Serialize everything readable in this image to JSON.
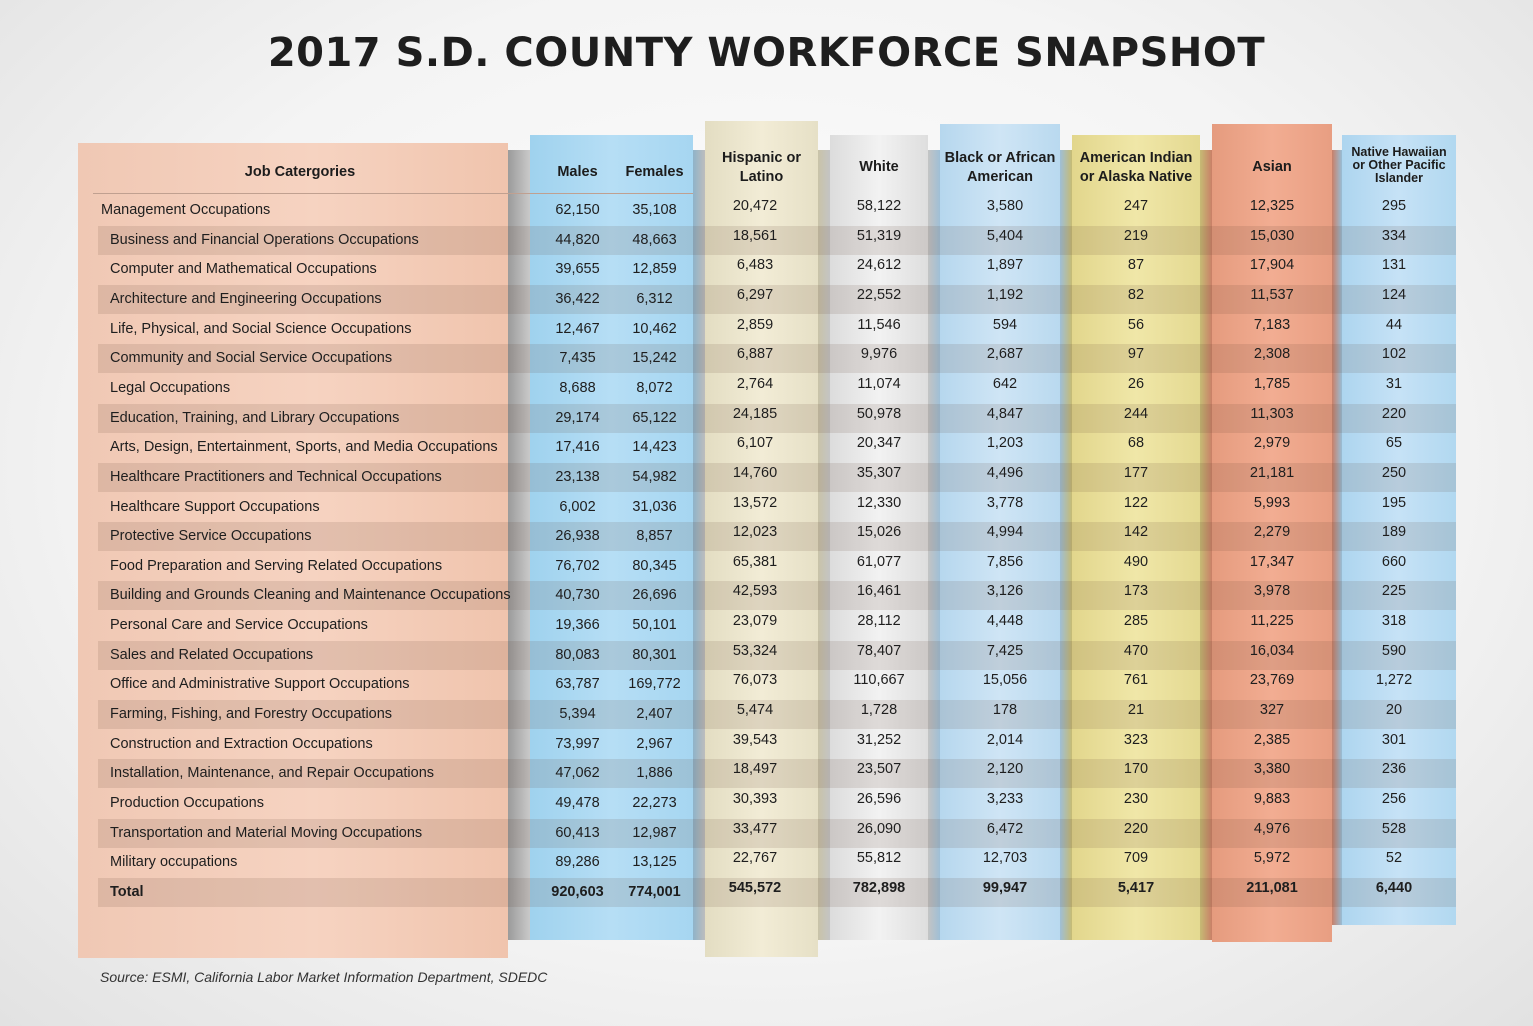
{
  "title": "2017 S.D. COUNTY WORKFORCE SNAPSHOT",
  "source": "Source: ESMI, California Labor Market Information Department, SDEDC",
  "colors": {
    "job_col": "#f4cdb9",
    "males_females_col": "#b0dbf3",
    "hispanic_col": "#efe9d2",
    "white_col": "#ececec",
    "black_col": "#c9e1f3",
    "american_indian_col": "#ece2a0",
    "asian_col": "#ee a88c",
    "native_hawaiian_col": "#c0dff4"
  },
  "chart_data": {
    "type": "table",
    "title": "2017 S.D. COUNTY WORKFORCE SNAPSHOT",
    "headers": {
      "job": "Job Catergories",
      "males": "Males",
      "females": "Females",
      "hispanic_1": "Hispanic or",
      "hispanic_2": "Latino",
      "white": "White",
      "black_1": "Black or African",
      "black_2": "American",
      "amind_1": "American Indian",
      "amind_2": "or Alaska Native",
      "asian": "Asian",
      "nh_1": "Native Hawaiian",
      "nh_2": "or Other Pacific",
      "nh_3": "Islander"
    },
    "rows": [
      {
        "job": "Management Occupations",
        "males": "62,150",
        "females": "35,108",
        "hispanic": "20,472",
        "white": "58,122",
        "black": "3,580",
        "amind": "247",
        "asian": "12,325",
        "nh": "295"
      },
      {
        "job": "Business and Financial Operations Occupations",
        "males": "44,820",
        "females": "48,663",
        "hispanic": "18,561",
        "white": "51,319",
        "black": "5,404",
        "amind": "219",
        "asian": "15,030",
        "nh": "334"
      },
      {
        "job": "Computer and Mathematical Occupations",
        "males": "39,655",
        "females": "12,859",
        "hispanic": "6,483",
        "white": "24,612",
        "black": "1,897",
        "amind": "87",
        "asian": "17,904",
        "nh": "131"
      },
      {
        "job": "Architecture and Engineering Occupations",
        "males": "36,422",
        "females": "6,312",
        "hispanic": "6,297",
        "white": "22,552",
        "black": "1,192",
        "amind": "82",
        "asian": "11,537",
        "nh": "124"
      },
      {
        "job": "Life, Physical, and Social Science Occupations",
        "males": "12,467",
        "females": "10,462",
        "hispanic": "2,859",
        "white": "11,546",
        "black": "594",
        "amind": "56",
        "asian": "7,183",
        "nh": "44"
      },
      {
        "job": "Community and Social Service Occupations",
        "males": "7,435",
        "females": "15,242",
        "hispanic": "6,887",
        "white": "9,976",
        "black": "2,687",
        "amind": "97",
        "asian": "2,308",
        "nh": "102"
      },
      {
        "job": "Legal Occupations",
        "males": "8,688",
        "females": "8,072",
        "hispanic": "2,764",
        "white": "11,074",
        "black": "642",
        "amind": "26",
        "asian": "1,785",
        "nh": "31"
      },
      {
        "job": "Education, Training, and Library Occupations",
        "males": "29,174",
        "females": "65,122",
        "hispanic": "24,185",
        "white": "50,978",
        "black": "4,847",
        "amind": "244",
        "asian": "11,303",
        "nh": "220"
      },
      {
        "job": "Arts, Design, Entertainment, Sports, and Media Occupations",
        "males": "17,416",
        "females": "14,423",
        "hispanic": "6,107",
        "white": "20,347",
        "black": "1,203",
        "amind": "68",
        "asian": "2,979",
        "nh": "65"
      },
      {
        "job": "Healthcare Practitioners and Technical Occupations",
        "males": "23,138",
        "females": "54,982",
        "hispanic": "14,760",
        "white": "35,307",
        "black": "4,496",
        "amind": "177",
        "asian": "21,181",
        "nh": "250"
      },
      {
        "job": "Healthcare Support Occupations",
        "males": "6,002",
        "females": "31,036",
        "hispanic": "13,572",
        "white": "12,330",
        "black": "3,778",
        "amind": "122",
        "asian": "5,993",
        "nh": "195"
      },
      {
        "job": "Protective Service Occupations",
        "males": "26,938",
        "females": "8,857",
        "hispanic": "12,023",
        "white": "15,026",
        "black": "4,994",
        "amind": "142",
        "asian": "2,279",
        "nh": "189"
      },
      {
        "job": "Food Preparation and Serving Related Occupations",
        "males": "76,702",
        "females": "80,345",
        "hispanic": "65,381",
        "white": "61,077",
        "black": "7,856",
        "amind": "490",
        "asian": "17,347",
        "nh": "660"
      },
      {
        "job": "Building and Grounds Cleaning and Maintenance Occupations",
        "males": "40,730",
        "females": "26,696",
        "hispanic": "42,593",
        "white": "16,461",
        "black": "3,126",
        "amind": "173",
        "asian": "3,978",
        "nh": "225"
      },
      {
        "job": "Personal Care and Service Occupations",
        "males": "19,366",
        "females": "50,101",
        "hispanic": "23,079",
        "white": "28,112",
        "black": "4,448",
        "amind": "285",
        "asian": "11,225",
        "nh": "318"
      },
      {
        "job": "Sales and Related Occupations",
        "males": "80,083",
        "females": "80,301",
        "hispanic": "53,324",
        "white": "78,407",
        "black": "7,425",
        "amind": "470",
        "asian": "16,034",
        "nh": "590"
      },
      {
        "job": "Office and Administrative Support Occupations",
        "males": "63,787",
        "females": "169,772",
        "hispanic": "76,073",
        "white": "110,667",
        "black": "15,056",
        "amind": "761",
        "asian": "23,769",
        "nh": "1,272"
      },
      {
        "job": "Farming, Fishing, and Forestry Occupations",
        "males": "5,394",
        "females": "2,407",
        "hispanic": "5,474",
        "white": "1,728",
        "black": "178",
        "amind": "21",
        "asian": "327",
        "nh": "20"
      },
      {
        "job": "Construction and Extraction Occupations",
        "males": "73,997",
        "females": "2,967",
        "hispanic": "39,543",
        "white": "31,252",
        "black": "2,014",
        "amind": "323",
        "asian": "2,385",
        "nh": "301"
      },
      {
        "job": "Installation, Maintenance, and Repair Occupations",
        "males": "47,062",
        "females": "1,886",
        "hispanic": "18,497",
        "white": "23,507",
        "black": "2,120",
        "amind": "170",
        "asian": "3,380",
        "nh": "236"
      },
      {
        "job": "Production Occupations",
        "males": "49,478",
        "females": "22,273",
        "hispanic": "30,393",
        "white": "26,596",
        "black": "3,233",
        "amind": "230",
        "asian": "9,883",
        "nh": "256"
      },
      {
        "job": "Transportation and Material Moving Occupations",
        "males": "60,413",
        "females": "12,987",
        "hispanic": "33,477",
        "white": "26,090",
        "black": "6,472",
        "amind": "220",
        "asian": "4,976",
        "nh": "528"
      },
      {
        "job": "Military occupations",
        "males": "89,286",
        "females": "13,125",
        "hispanic": "22,767",
        "white": "55,812",
        "black": "12,703",
        "amind": "709",
        "asian": "5,972",
        "nh": "52"
      }
    ],
    "total": {
      "job": "Total",
      "males": "920,603",
      "females": "774,001",
      "hispanic": "545,572",
      "white": "782,898",
      "black": "99,947",
      "amind": "5,417",
      "asian": "211,081",
      "nh": "6,440"
    }
  }
}
